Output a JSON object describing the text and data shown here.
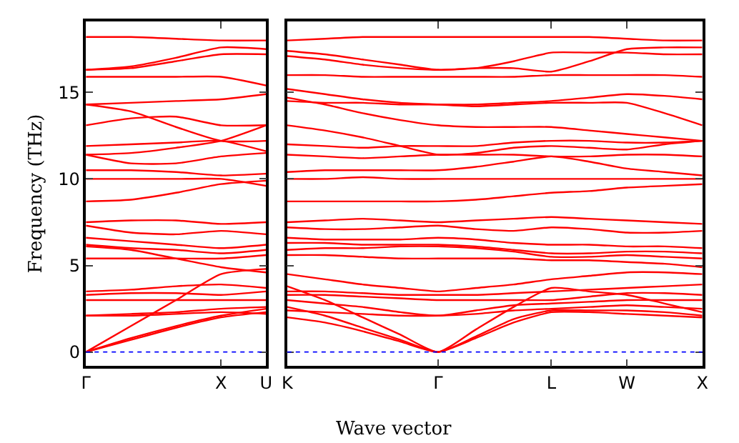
{
  "chart_data": [
    {
      "type": "line",
      "xlabel": "Wave vector",
      "ylabel": "Frequency (THz)",
      "categories": [
        "Γ",
        null,
        null,
        "X",
        "U"
      ],
      "ylim": [
        -0.8,
        19.1
      ],
      "yticks": [
        0,
        5,
        10,
        15
      ],
      "marker": "none",
      "line_style": "solid",
      "ref_lines": [
        {
          "axis": "y",
          "value": 0,
          "color": "#0000ff",
          "line_style": "dotted"
        }
      ],
      "series": [
        {
          "color": "#ff0000",
          "values": [
            0,
            0.7,
            1.4,
            2.0,
            2.3
          ]
        },
        {
          "color": "#ff0000",
          "values": [
            0,
            0.8,
            1.5,
            2.1,
            2.5
          ]
        },
        {
          "color": "#ff0000",
          "values": [
            0,
            1.5,
            3.0,
            4.5,
            4.8
          ]
        },
        {
          "color": "#ff0000",
          "values": [
            2.1,
            2.1,
            2.2,
            2.3,
            2.2
          ]
        },
        {
          "color": "#ff0000",
          "values": [
            2.1,
            2.2,
            2.3,
            2.5,
            2.6
          ]
        },
        {
          "color": "#ff0000",
          "values": [
            3.0,
            3.0,
            3.0,
            3.0,
            3.0
          ]
        },
        {
          "color": "#ff0000",
          "values": [
            3.3,
            3.4,
            3.4,
            3.3,
            3.5
          ]
        },
        {
          "color": "#ff0000",
          "values": [
            3.5,
            3.6,
            3.8,
            3.9,
            3.7
          ]
        },
        {
          "color": "#ff0000",
          "values": [
            5.4,
            5.4,
            5.4,
            5.4,
            5.6
          ]
        },
        {
          "color": "#ff0000",
          "values": [
            6.1,
            5.9,
            5.4,
            4.9,
            4.6
          ]
        },
        {
          "color": "#ff0000",
          "values": [
            6.2,
            6.0,
            5.9,
            5.7,
            5.9
          ]
        },
        {
          "color": "#ff0000",
          "values": [
            6.6,
            6.4,
            6.2,
            6.0,
            6.2
          ]
        },
        {
          "color": "#ff0000",
          "values": [
            7.3,
            6.9,
            6.8,
            7.0,
            6.8
          ]
        },
        {
          "color": "#ff0000",
          "values": [
            7.5,
            7.6,
            7.6,
            7.4,
            7.5
          ]
        },
        {
          "color": "#ff0000",
          "values": [
            8.7,
            8.8,
            9.2,
            9.7,
            9.9
          ]
        },
        {
          "color": "#ff0000",
          "values": [
            10.0,
            10.0,
            10.0,
            10.0,
            9.6
          ]
        },
        {
          "color": "#ff0000",
          "values": [
            10.5,
            10.5,
            10.4,
            10.2,
            10.3
          ]
        },
        {
          "color": "#ff0000",
          "values": [
            11.4,
            10.9,
            10.9,
            11.3,
            11.5
          ]
        },
        {
          "color": "#ff0000",
          "values": [
            11.9,
            12.0,
            12.1,
            12.2,
            11.6
          ]
        },
        {
          "color": "#ff0000",
          "values": [
            11.4,
            11.5,
            11.8,
            12.2,
            13.1
          ]
        },
        {
          "color": "#ff0000",
          "values": [
            13.1,
            13.5,
            13.6,
            13.1,
            13.1
          ]
        },
        {
          "color": "#ff0000",
          "values": [
            14.3,
            13.9,
            13.0,
            12.2,
            12.2
          ]
        },
        {
          "color": "#ff0000",
          "values": [
            14.3,
            14.4,
            14.5,
            14.6,
            14.9
          ]
        },
        {
          "color": "#ff0000",
          "values": [
            15.9,
            15.9,
            15.9,
            15.9,
            15.4
          ]
        },
        {
          "color": "#ff0000",
          "values": [
            16.3,
            16.5,
            17.0,
            17.6,
            17.5
          ]
        },
        {
          "color": "#ff0000",
          "values": [
            16.3,
            16.4,
            16.8,
            17.2,
            17.2
          ]
        },
        {
          "color": "#ff0000",
          "values": [
            18.2,
            18.2,
            18.1,
            18.0,
            18.0
          ]
        }
      ]
    },
    {
      "type": "line",
      "categories": [
        "K",
        null,
        null,
        null,
        "Γ",
        null,
        null,
        "L",
        null,
        "W",
        null,
        "X"
      ],
      "ylim": [
        -0.8,
        19.1
      ],
      "yticks": [
        {
          "value": 0,
          "label": null
        },
        {
          "value": 5,
          "label": null
        },
        {
          "value": 10,
          "label": null
        },
        {
          "value": 15,
          "label": null
        }
      ],
      "tick_labels": "x",
      "marker": "none",
      "line_style": "solid",
      "ref_lines": [
        {
          "axis": "y",
          "value": 0,
          "color": "#0000ff",
          "line_style": "dotted"
        }
      ],
      "series": [
        {
          "color": "#ff0000",
          "values": [
            2.0,
            1.7,
            1.2,
            0.6,
            0,
            0.8,
            1.7,
            2.3,
            2.3,
            2.2,
            2.1,
            2.0
          ]
        },
        {
          "color": "#ff0000",
          "values": [
            2.6,
            2.1,
            1.4,
            0.7,
            0,
            0.9,
            1.9,
            2.4,
            2.4,
            2.4,
            2.3,
            2.1
          ]
        },
        {
          "color": "#ff0000",
          "values": [
            3.8,
            3.0,
            2.0,
            1.0,
            0,
            1.3,
            2.6,
            3.7,
            3.5,
            3.3,
            2.8,
            2.3
          ]
        },
        {
          "color": "#ff0000",
          "values": [
            2.4,
            2.3,
            2.2,
            2.1,
            2.1,
            2.2,
            2.4,
            2.5,
            2.6,
            2.7,
            2.6,
            2.5
          ]
        },
        {
          "color": "#ff0000",
          "values": [
            3.0,
            2.8,
            2.6,
            2.3,
            2.1,
            2.4,
            2.7,
            2.8,
            2.9,
            3.0,
            3.0,
            3.0
          ]
        },
        {
          "color": "#ff0000",
          "values": [
            3.3,
            3.3,
            3.2,
            3.1,
            3.0,
            3.0,
            3.0,
            3.0,
            3.2,
            3.4,
            3.4,
            3.3
          ]
        },
        {
          "color": "#ff0000",
          "values": [
            3.5,
            3.5,
            3.4,
            3.3,
            3.3,
            3.3,
            3.4,
            3.5,
            3.6,
            3.7,
            3.8,
            3.9
          ]
        },
        {
          "color": "#ff0000",
          "values": [
            4.5,
            4.2,
            3.9,
            3.7,
            3.5,
            3.7,
            3.9,
            4.2,
            4.4,
            4.6,
            4.6,
            4.5
          ]
        },
        {
          "color": "#ff0000",
          "values": [
            5.6,
            5.6,
            5.5,
            5.4,
            5.4,
            5.4,
            5.4,
            5.3,
            5.3,
            5.2,
            5.1,
            4.9
          ]
        },
        {
          "color": "#ff0000",
          "values": [
            5.9,
            6.0,
            6.0,
            6.1,
            6.1,
            6.0,
            5.8,
            5.5,
            5.5,
            5.6,
            5.5,
            5.4
          ]
        },
        {
          "color": "#ff0000",
          "values": [
            6.3,
            6.3,
            6.2,
            6.2,
            6.2,
            6.1,
            5.9,
            5.7,
            5.7,
            5.8,
            5.8,
            5.7
          ]
        },
        {
          "color": "#ff0000",
          "values": [
            6.6,
            6.5,
            6.5,
            6.5,
            6.6,
            6.5,
            6.3,
            6.2,
            6.2,
            6.1,
            6.1,
            6.0
          ]
        },
        {
          "color": "#ff0000",
          "values": [
            7.2,
            7.1,
            7.1,
            7.2,
            7.3,
            7.1,
            7.0,
            7.2,
            7.1,
            6.9,
            6.9,
            7.0
          ]
        },
        {
          "color": "#ff0000",
          "values": [
            7.5,
            7.6,
            7.7,
            7.6,
            7.5,
            7.6,
            7.7,
            7.8,
            7.7,
            7.6,
            7.5,
            7.4
          ]
        },
        {
          "color": "#ff0000",
          "values": [
            8.7,
            8.7,
            8.7,
            8.7,
            8.7,
            8.8,
            9.0,
            9.2,
            9.3,
            9.5,
            9.6,
            9.7
          ]
        },
        {
          "color": "#ff0000",
          "values": [
            10.0,
            10.0,
            10.1,
            10.0,
            10.0,
            10.0,
            10.0,
            10.0,
            10.0,
            10.0,
            10.0,
            10.0
          ]
        },
        {
          "color": "#ff0000",
          "values": [
            10.4,
            10.5,
            10.5,
            10.5,
            10.5,
            10.7,
            11.0,
            11.3,
            11.0,
            10.6,
            10.4,
            10.2
          ]
        },
        {
          "color": "#ff0000",
          "values": [
            11.4,
            11.3,
            11.2,
            11.3,
            11.4,
            11.4,
            11.4,
            11.3,
            11.3,
            11.4,
            11.4,
            11.3
          ]
        },
        {
          "color": "#ff0000",
          "values": [
            12.0,
            11.9,
            11.8,
            11.9,
            11.9,
            11.9,
            12.1,
            12.2,
            12.2,
            12.1,
            12.1,
            12.2
          ]
        },
        {
          "color": "#ff0000",
          "values": [
            13.1,
            12.8,
            12.4,
            11.9,
            11.4,
            11.5,
            11.8,
            11.9,
            11.8,
            11.7,
            12.0,
            12.2
          ]
        },
        {
          "color": "#ff0000",
          "values": [
            14.7,
            14.3,
            13.8,
            13.4,
            13.1,
            13.0,
            13.0,
            13.0,
            12.8,
            12.6,
            12.4,
            12.2
          ]
        },
        {
          "color": "#ff0000",
          "values": [
            15.2,
            14.9,
            14.6,
            14.4,
            14.3,
            14.2,
            14.3,
            14.4,
            14.4,
            14.4,
            13.8,
            13.1
          ]
        },
        {
          "color": "#ff0000",
          "values": [
            14.5,
            14.4,
            14.4,
            14.3,
            14.3,
            14.3,
            14.4,
            14.5,
            14.7,
            14.9,
            14.8,
            14.6
          ]
        },
        {
          "color": "#ff0000",
          "values": [
            16.0,
            16.0,
            15.9,
            15.9,
            15.9,
            15.9,
            15.9,
            16.0,
            16.0,
            16.0,
            16.0,
            15.9
          ]
        },
        {
          "color": "#ff0000",
          "values": [
            17.1,
            16.9,
            16.6,
            16.4,
            16.3,
            16.4,
            16.8,
            17.3,
            17.3,
            17.3,
            17.2,
            17.2
          ]
        },
        {
          "color": "#ff0000",
          "values": [
            17.4,
            17.2,
            16.9,
            16.6,
            16.3,
            16.4,
            16.4,
            16.2,
            16.8,
            17.5,
            17.6,
            17.6
          ]
        },
        {
          "color": "#ff0000",
          "values": [
            18.0,
            18.1,
            18.2,
            18.2,
            18.2,
            18.2,
            18.2,
            18.2,
            18.2,
            18.1,
            18.0,
            18.0
          ]
        }
      ]
    }
  ]
}
